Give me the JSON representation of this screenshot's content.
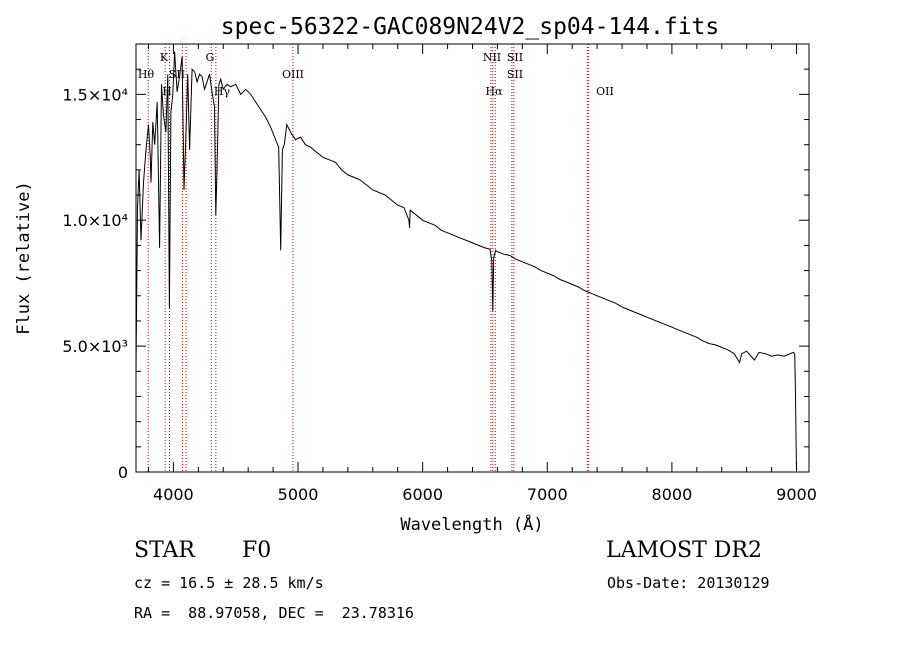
{
  "chart_data": {
    "type": "line",
    "title": "spec-56322-GAC089N24V2_sp04-144.fits",
    "xlabel": "Wavelength (Å)",
    "ylabel": "Flux (relative)",
    "xlim": [
      3700,
      9100
    ],
    "ylim": [
      0,
      17000
    ],
    "x_ticks": [
      4000,
      5000,
      6000,
      7000,
      8000,
      9000
    ],
    "y_ticks": [
      {
        "value": 0,
        "label": "0"
      },
      {
        "value": 5000,
        "label": "5.0×10³"
      },
      {
        "value": 10000,
        "label": 10000.0,
        "text": "1.0×10⁴"
      },
      {
        "value": 15000,
        "label": "1.5×10⁴"
      }
    ],
    "grid": false,
    "series": [
      {
        "x": [
          3700,
          3712,
          3725,
          3740,
          3760,
          3780,
          3800,
          3815,
          3820,
          3835,
          3850,
          3870,
          3889,
          3905,
          3920,
          3940,
          3955,
          3968,
          3980,
          3995,
          4010,
          4030,
          4050,
          4070,
          4085,
          4101,
          4115,
          4130,
          4150,
          4170,
          4190,
          4210,
          4230,
          4250,
          4270,
          4290,
          4310,
          4330,
          4340,
          4350,
          4365,
          4380,
          4400,
          4430,
          4460,
          4500,
          4540,
          4580,
          4620,
          4660,
          4700,
          4740,
          4780,
          4820,
          4845,
          4861,
          4875,
          4890,
          4910,
          4940,
          4980,
          5020,
          5060,
          5100,
          5150,
          5200,
          5250,
          5300,
          5350,
          5400,
          5450,
          5500,
          5550,
          5600,
          5650,
          5700,
          5750,
          5800,
          5850,
          5890,
          5895,
          5900,
          5950,
          6000,
          6050,
          6100,
          6150,
          6200,
          6250,
          6300,
          6350,
          6400,
          6450,
          6500,
          6540,
          6555,
          6563,
          6570,
          6585,
          6600,
          6650,
          6700,
          6750,
          6800,
          6850,
          6900,
          6950,
          7000,
          7050,
          7100,
          7150,
          7200,
          7250,
          7300,
          7350,
          7400,
          7450,
          7500,
          7550,
          7600,
          7650,
          7700,
          7750,
          7800,
          7850,
          7900,
          7950,
          8000,
          8050,
          8100,
          8150,
          8200,
          8250,
          8300,
          8350,
          8400,
          8450,
          8500,
          8542,
          8560,
          8600,
          8662,
          8700,
          8750,
          8800,
          8850,
          8900,
          8950,
          8975,
          8985,
          8990,
          9000
        ],
        "y": [
          4000,
          10500,
          12000,
          9200,
          11500,
          12800,
          13800,
          12500,
          11500,
          13900,
          13000,
          14700,
          8900,
          15400,
          14200,
          13500,
          15800,
          6500,
          14300,
          15000,
          16700,
          15100,
          15700,
          16500,
          11200,
          13500,
          15800,
          12800,
          16000,
          15900,
          15500,
          15800,
          15700,
          15200,
          15500,
          15800,
          15100,
          14500,
          10200,
          12000,
          15400,
          15600,
          15200,
          15400,
          15300,
          15400,
          15000,
          15200,
          15000,
          14700,
          14400,
          14100,
          13700,
          13200,
          12900,
          8800,
          12800,
          13000,
          13800,
          13500,
          13200,
          13300,
          13000,
          12900,
          12700,
          12500,
          12400,
          12300,
          12000,
          11800,
          11700,
          11600,
          11400,
          11200,
          11100,
          11000,
          10800,
          10600,
          10500,
          10000,
          9700,
          10400,
          10200,
          10000,
          9900,
          9800,
          9600,
          9500,
          9400,
          9300,
          9200,
          9100,
          9000,
          8900,
          8850,
          8400,
          6400,
          8500,
          8800,
          8750,
          8650,
          8600,
          8450,
          8350,
          8250,
          8150,
          8000,
          7900,
          7800,
          7650,
          7550,
          7450,
          7350,
          7200,
          7100,
          7000,
          6900,
          6800,
          6700,
          6550,
          6450,
          6350,
          6250,
          6150,
          6050,
          5950,
          5850,
          5750,
          5650,
          5550,
          5450,
          5350,
          5200,
          5100,
          5050,
          4950,
          4850,
          4700,
          4350,
          4700,
          4800,
          4450,
          4750,
          4700,
          4600,
          4650,
          4600,
          4700,
          4750,
          4700,
          3600,
          0
        ]
      }
    ],
    "lines": [
      {
        "label": "Hθ",
        "wavelength": 3798
      },
      {
        "label": "K",
        "wavelength": 3934
      },
      {
        "label": "H",
        "wavelength": 3969
      },
      {
        "label": "SII",
        "wavelength": 4072
      },
      {
        "label": "Hδ",
        "wavelength": 4102
      },
      {
        "label": "G",
        "wavelength": 4304
      },
      {
        "label": "Hγ",
        "wavelength": 4341
      },
      {
        "label": "OIII",
        "wavelength": 4959
      },
      {
        "label": "NII",
        "wavelength": 6548
      },
      {
        "label": "Hα",
        "wavelength": 6563
      },
      {
        "label": "NII",
        "wavelength": 6583
      },
      {
        "label": "SII",
        "wavelength": 6716
      },
      {
        "label": "SII",
        "wavelength": 6731
      },
      {
        "label": "OII",
        "wavelength": 7320
      },
      {
        "label": "OII",
        "wavelength": 7330
      }
    ],
    "visible_line_labels": [
      {
        "text": "Hθ"
      },
      {
        "text": "K"
      },
      {
        "text": "H"
      },
      {
        "text": "SII"
      },
      {
        "text": "G"
      },
      {
        "text": "Hγ"
      },
      {
        "text": "OIII"
      },
      {
        "text": "NII"
      },
      {
        "text": "SII"
      },
      {
        "text": "Hα"
      },
      {
        "text": "SII"
      },
      {
        "text": "OII"
      }
    ],
    "colors": {
      "spectrum": "#000000",
      "lines": "#cc0000",
      "frame": "#000000"
    }
  },
  "info": {
    "class": "STAR",
    "subclass": "F0",
    "survey": "LAMOST DR2",
    "cz": "cz = 16.5 ± 28.5 km/s",
    "obs_date": "Obs-Date: 20130129",
    "coords": "RA =  88.97058, DEC =  23.78316"
  }
}
